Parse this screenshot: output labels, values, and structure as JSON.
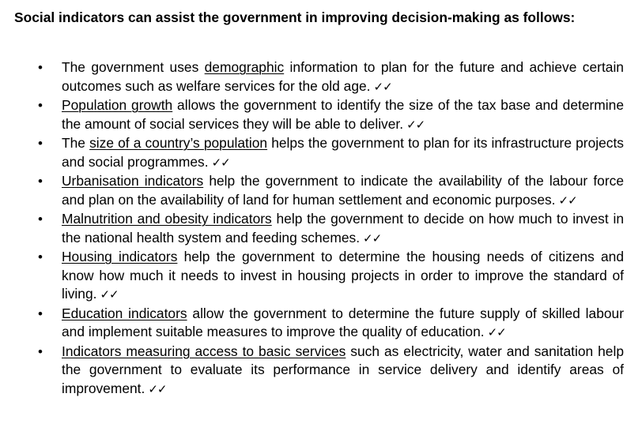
{
  "heading": "Social indicators can assist the government in improving decision-making as follows:",
  "bullet_glyph": "•",
  "tick_mark": "✓✓",
  "items": [
    {
      "before": "The government uses ",
      "term": "demographic",
      "after": " information to plan for the future and achieve certain outcomes such as welfare services for the old age."
    },
    {
      "before": "",
      "term": "Population growth",
      "after": " allows the government to identify the size of the tax base and determine the amount of social services they will be able to deliver."
    },
    {
      "before": "The ",
      "term": "size of a country’s population",
      "after": " helps the government to plan for its infrastructure projects and social programmes."
    },
    {
      "before": "",
      "term": "Urbanisation indicators",
      "after": " help the government to indicate the availability of the labour force and plan on the availability of land for human settlement and economic purposes."
    },
    {
      "before": "",
      "term": "Malnutrition and obesity indicators",
      "after": " help the government to decide on how much to invest in the national health system and feeding schemes."
    },
    {
      "before": "",
      "term": "Housing indicators",
      "after": " help the government to determine the housing needs of citizens and know how much it needs to invest in housing projects in order to improve the standard of living."
    },
    {
      "before": "",
      "term": "Education indicators",
      "after": " allow the government to determine the future supply of skilled labour and implement suitable measures to improve the quality of education."
    },
    {
      "before": "",
      "term": "Indicators measuring access to basic services",
      "after": " such as electricity, water and sanitation help the government to evaluate its performance in service delivery and identify areas of improvement."
    }
  ]
}
